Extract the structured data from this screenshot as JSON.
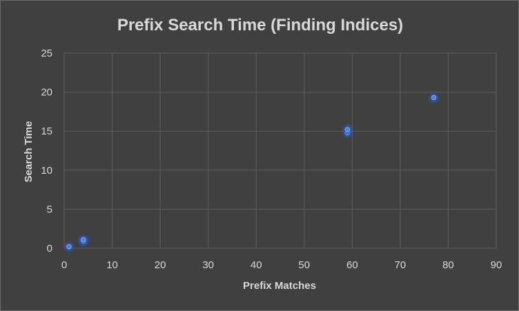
{
  "chart_data": {
    "type": "scatter",
    "title": "Prefix Search Time (Finding Indices)",
    "xlabel": "Prefix Matches",
    "ylabel": "Search Time",
    "xlim": [
      0,
      90
    ],
    "ylim": [
      0,
      25
    ],
    "xticks": [
      "0",
      "10",
      "20",
      "30",
      "40",
      "50",
      "60",
      "70",
      "80",
      "90"
    ],
    "yticks": [
      "0",
      "5",
      "10",
      "15",
      "20",
      "25"
    ],
    "grid": true,
    "legend": "none",
    "colors": {
      "background": "#404040",
      "grid": "#5e5e5e",
      "text": "#d9d9d9",
      "marker": "#4a7fd6",
      "marker_glow": "#2f5fc4"
    },
    "series": [
      {
        "points": [
          {
            "x": 1,
            "y": 0.2
          },
          {
            "x": 4,
            "y": 0.9
          },
          {
            "x": 4,
            "y": 1.1
          },
          {
            "x": 59,
            "y": 14.8
          },
          {
            "x": 59,
            "y": 15.2
          },
          {
            "x": 77,
            "y": 19.3
          }
        ]
      }
    ]
  }
}
